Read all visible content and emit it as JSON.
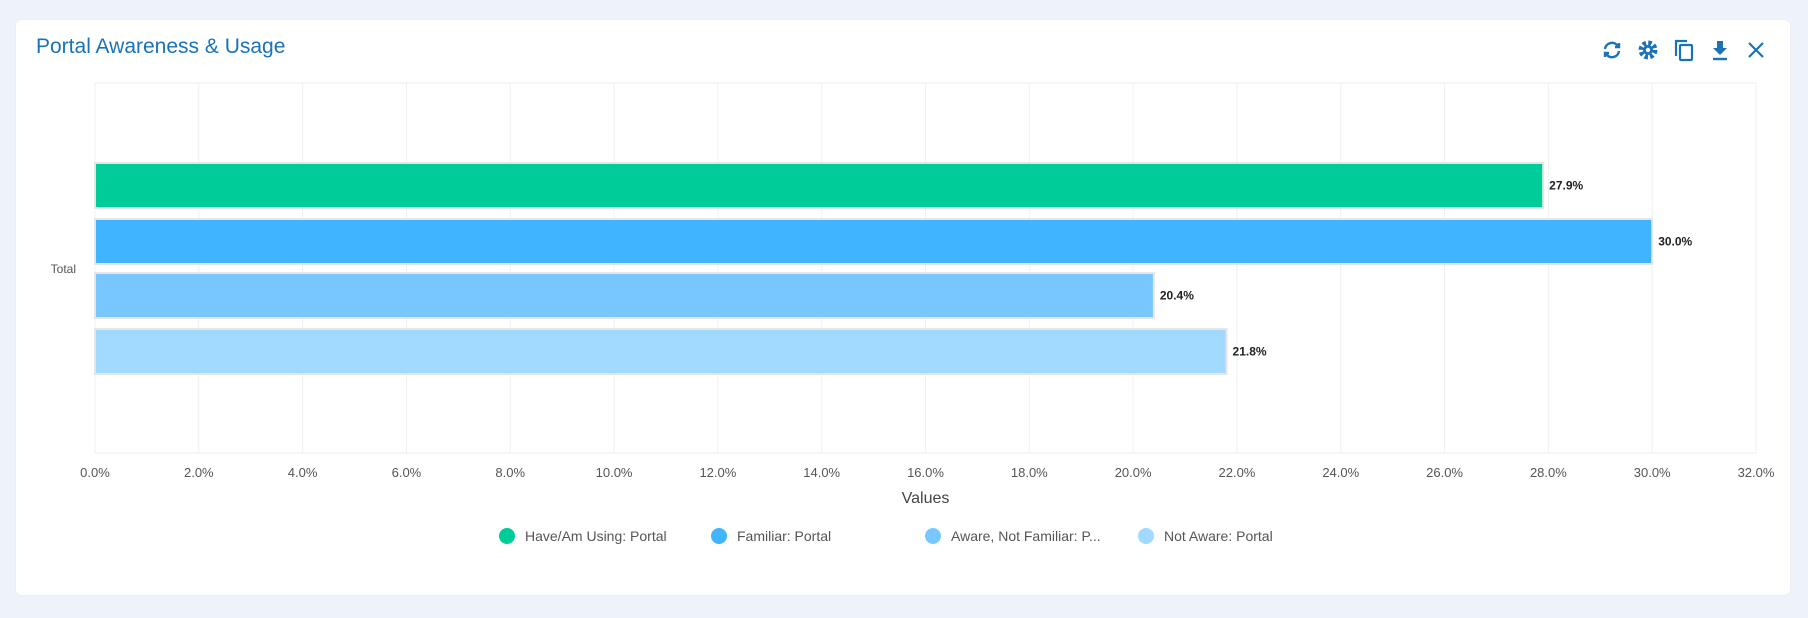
{
  "title": "Portal Awareness & Usage",
  "toolbar": {
    "icons": [
      "refresh-icon",
      "gear-icon",
      "copy-icon",
      "download-icon",
      "close-icon"
    ]
  },
  "chart_data": {
    "type": "bar",
    "orientation": "horizontal",
    "categories": [
      "Total"
    ],
    "series": [
      {
        "name": "Have/Am Using: Portal",
        "legend_label": "Have/Am Using: Portal",
        "values": [
          27.9
        ],
        "label": "27.9%",
        "color": "#00cc99"
      },
      {
        "name": "Familiar: Portal",
        "legend_label": "Familiar: Portal",
        "values": [
          30.0
        ],
        "label": "30.0%",
        "color": "#40b4ff"
      },
      {
        "name": "Aware, Not Familiar: Portal",
        "legend_label": "Aware, Not Familiar: P...",
        "values": [
          20.4
        ],
        "label": "20.4%",
        "color": "#78c8ff"
      },
      {
        "name": "Not Aware: Portal",
        "legend_label": "Not Aware: Portal",
        "values": [
          21.8
        ],
        "label": "21.8%",
        "color": "#a2d9ff"
      }
    ],
    "xlabel": "Values",
    "ylabel": "",
    "xlim": [
      0,
      32
    ],
    "xticks": [
      "0.0%",
      "2.0%",
      "4.0%",
      "6.0%",
      "8.0%",
      "10.0%",
      "12.0%",
      "14.0%",
      "16.0%",
      "18.0%",
      "20.0%",
      "22.0%",
      "24.0%",
      "26.0%",
      "28.0%",
      "30.0%",
      "32.0%"
    ],
    "grid": true,
    "legend_position": "bottom"
  }
}
